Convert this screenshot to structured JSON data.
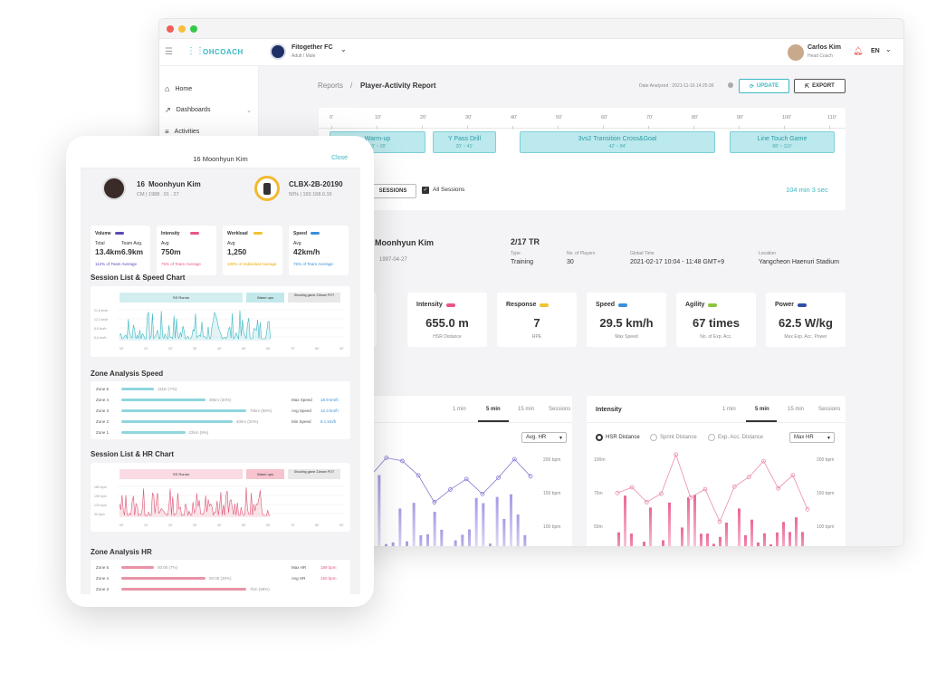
{
  "app": {
    "brand": "OHCOACH",
    "team": "Fitogether FC",
    "team_sub": "Adult / Male",
    "user": "Carlos Kim",
    "user_role": "Head Coach",
    "lang": "EN"
  },
  "sidebar": {
    "items": [
      {
        "label": "Home",
        "icon": "home-icon"
      },
      {
        "label": "Dashboards",
        "icon": "chart-icon"
      },
      {
        "label": "Activities",
        "icon": "list-icon"
      }
    ]
  },
  "header": {
    "crumb1": "Reports",
    "sep": "/",
    "crumb2": "Player-Activity Report",
    "date_label": "Date Analyzed : 2021-11-16 14:25:36",
    "update": "UPDATE",
    "export": "EXPORT"
  },
  "timeline": {
    "ticks": [
      "0'",
      "10'",
      "20'",
      "30'",
      "40'",
      "50'",
      "60'",
      "70'",
      "80'",
      "90'",
      "100'",
      "110'"
    ],
    "segments": [
      {
        "name": "Warm-up",
        "time": "10' ~ 20'"
      },
      {
        "name": "Y Pass Drill",
        "time": "20' ~ 41'"
      },
      {
        "name": "3vs2 Transition Cross&Goal",
        "time": "42' ~ 84'"
      },
      {
        "name": "Line Touch Game",
        "time": "88' ~ 110'"
      }
    ],
    "sessions": "SESSIONS",
    "all_sessions": "All Sessions",
    "duration": "104 min 3 sec"
  },
  "player": {
    "name": "Moonhyun Kim",
    "dob": "1997-04-27",
    "session": "2/17 TR",
    "type_label": "Type",
    "type": "Training",
    "players_label": "No. of Players",
    "players": "30",
    "time_label": "Global Time",
    "time": "2021-02-17   10:04 - 11:48   GMT+9",
    "loc_label": "Location",
    "loc": "Yangcheon Haenuri Stadium"
  },
  "stats": [
    {
      "label": "Intensity",
      "value": "655.0 m",
      "sub": "HSR Distance",
      "color": "#e8558b"
    },
    {
      "label": "Response",
      "value": "7",
      "sub": "RPE",
      "color": "#f2c230"
    },
    {
      "label": "Speed",
      "value": "29.5 km/h",
      "sub": "Max Speed",
      "color": "#3a8fd8"
    },
    {
      "label": "Agility",
      "value": "67 times",
      "sub": "No. of Exp. Acc.",
      "color": "#8cc63e"
    },
    {
      "label": "Power",
      "value": "62.5 W/kg",
      "sub": "Max Exp. Acc. Power",
      "color": "#2f4fa8"
    }
  ],
  "stat_partial": "m",
  "chart_left": {
    "tabs": [
      "1 min",
      "5 min",
      "15 min",
      "Sessions"
    ],
    "select": "Avg. HR",
    "yticks": [
      "200 bpm",
      "150 bpm",
      "100 bpm"
    ]
  },
  "chart_right": {
    "title": "Intensity",
    "tabs": [
      "1 min",
      "5 min",
      "15 min",
      "Sessions"
    ],
    "radios": [
      "HSR Distance",
      "Sprint Distance",
      "Exp. Acc. Distance"
    ],
    "select": "Max HR",
    "yl": [
      "100m",
      "75m",
      "50m"
    ],
    "yr": [
      "200 bpm",
      "150 bpm",
      "100 bpm"
    ]
  },
  "phone": {
    "title": "16  Moonhyun Kim",
    "close": "Close",
    "num": "16",
    "name": "Moonhyun Kim",
    "meta": "CM  |  1988 . 01 . 27",
    "device": "CLBX-2B-20190",
    "device_meta": "50%  |  192.168.0.15",
    "cards": [
      {
        "label": "Volume",
        "color": "#5a4bb5",
        "l1": "Total",
        "v1": "13.4km",
        "l2": "Team Avg.",
        "v2": "6.9km",
        "note": "112% of Team Average",
        "nc": "#5a4bb5"
      },
      {
        "label": "Intensity",
        "color": "#e8558b",
        "l1": "Avg",
        "v1": "750m",
        "note": "75% of Team Average",
        "nc": "#e8558b"
      },
      {
        "label": "Workload",
        "color": "#f2c230",
        "l1": "Avg",
        "v1": "1,250",
        "note": "100% of Individual Average",
        "nc": "#e5a700"
      },
      {
        "label": "Speed",
        "color": "#3a8fd8",
        "l1": "Avg",
        "v1": "42km/h",
        "note": "75% of Team Average",
        "nc": "#3a8fd8"
      }
    ],
    "speed_chart_title": "Session List & Speed Chart",
    "speed_segs": [
      "SS Rondo",
      "Warm ups",
      "Shooting game 21team POT"
    ],
    "speed_y": [
      "21.6 km/h",
      "12.3 km/h",
      "8.8 km/h",
      "5.6 km/h"
    ],
    "xt": [
      "00'",
      "10'",
      "20'",
      "30'",
      "40'",
      "50'",
      "60'",
      "70'",
      "80'",
      "90'"
    ],
    "zone_speed_title": "Zone Analysis Speed",
    "zones_speed": [
      {
        "z": "Zone 5",
        "v": "11km (7%)",
        "w": 0.24
      },
      {
        "z": "Zone 4",
        "v": "30km (30%)",
        "w": 0.62
      },
      {
        "z": "Zone 3",
        "v": "70km (98%)",
        "w": 0.92
      },
      {
        "z": "Zone 2",
        "v": "40km (20%)",
        "w": 0.82
      },
      {
        "z": "Zone 1",
        "v": "22km (9%)",
        "w": 0.47
      }
    ],
    "speed_stats": [
      {
        "l": "Max Speed",
        "v": "18.9 km/h"
      },
      {
        "l": "Avg Speed",
        "v": "12.3 km/h"
      },
      {
        "l": "Min Speed",
        "v": "8.1 km/h"
      }
    ],
    "hr_chart_title": "Session List & HR Chart",
    "hr_segs": [
      "SS Rondo",
      "Warm ups",
      "Shooting game 21team POT"
    ],
    "hr_y": [
      "180 bpm",
      "150 bpm",
      "120 bpm",
      "90 bpm"
    ],
    "zone_hr_title": "Zone Analysis HR",
    "zones_hr": [
      {
        "z": "Zone 5",
        "v": "00:05 (7%)",
        "w": 0.24
      },
      {
        "z": "Zone 4",
        "v": "00:05 (30%)",
        "w": 0.62
      },
      {
        "z": "Zone 3",
        "v": "7km (98%)",
        "w": 0.92
      }
    ],
    "hr_stats": [
      {
        "l": "Max HR",
        "v": "189 bpm"
      },
      {
        "l": "Avg HR",
        "v": "150 bpm"
      }
    ]
  }
}
